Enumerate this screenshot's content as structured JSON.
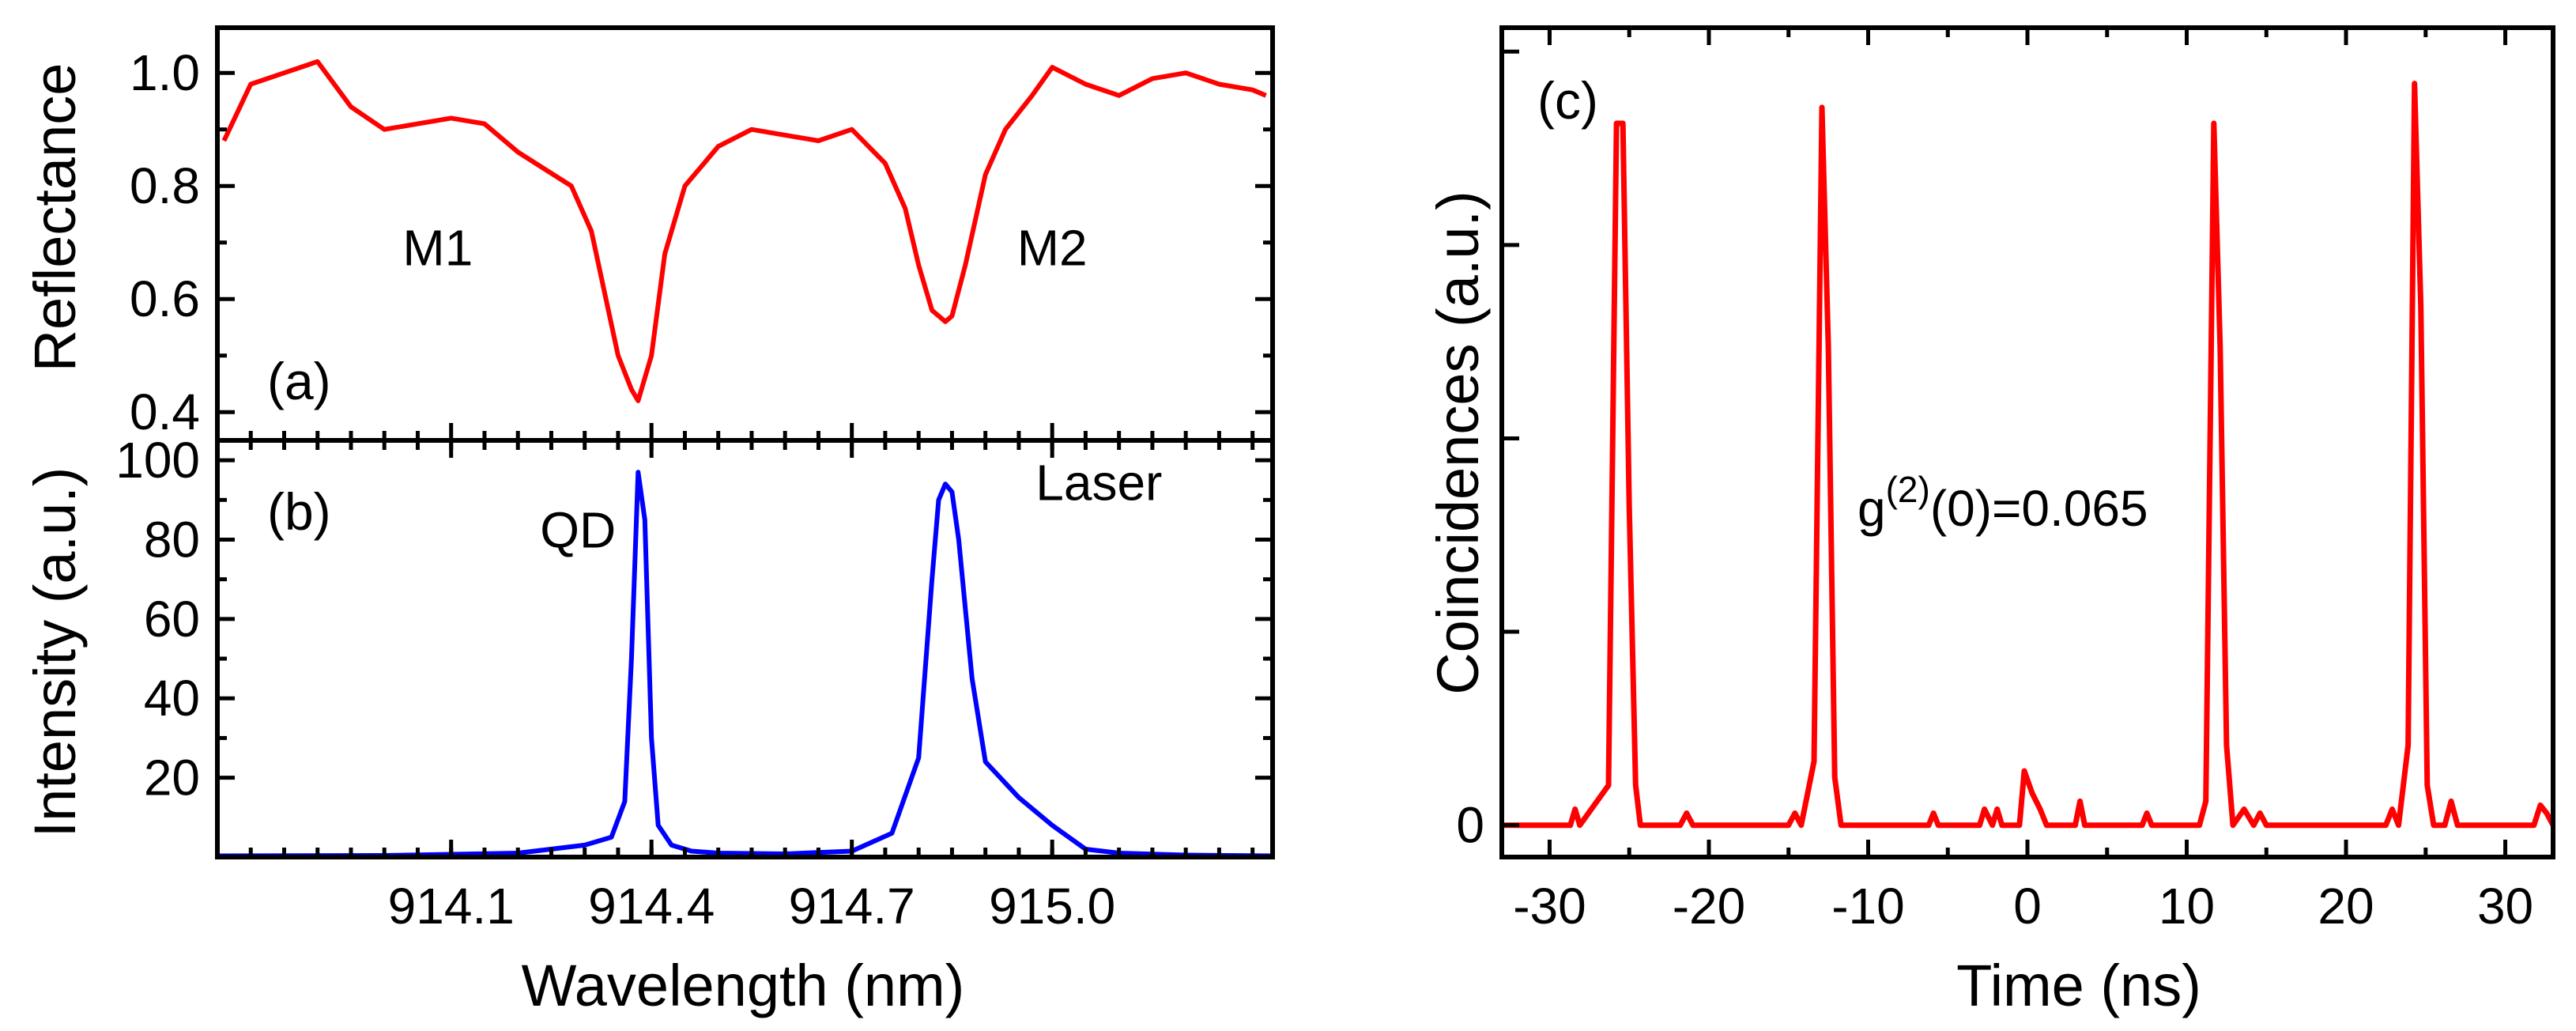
{
  "chart_data": [
    {
      "panel": "a",
      "type": "line",
      "panel_label": "(a)",
      "ylabel": "Reflectance",
      "xlabel": "",
      "xlim": [
        913.75,
        915.33
      ],
      "ylim": [
        0.35,
        1.08
      ],
      "yticks": [
        "0.4",
        "0.6",
        "0.8",
        "1.0"
      ],
      "ytick_values": [
        0.4,
        0.6,
        0.8,
        1.0
      ],
      "color": "#ff0000",
      "annotations": [
        {
          "text": "M1",
          "x": 914.08,
          "y": 0.66
        },
        {
          "text": "M2",
          "x": 915.0,
          "y": 0.66
        }
      ],
      "series": [
        {
          "name": "Reflectance",
          "x": [
            913.76,
            913.8,
            913.85,
            913.9,
            913.95,
            914.0,
            914.05,
            914.1,
            914.15,
            914.2,
            914.24,
            914.28,
            914.31,
            914.33,
            914.35,
            914.37,
            914.38,
            914.4,
            914.42,
            914.45,
            914.5,
            914.55,
            914.6,
            914.65,
            914.7,
            914.75,
            914.78,
            914.8,
            914.82,
            914.84,
            914.85,
            914.87,
            914.9,
            914.93,
            914.97,
            915.0,
            915.05,
            915.1,
            915.15,
            915.2,
            915.25,
            915.3,
            915.32
          ],
          "y": [
            0.88,
            0.98,
            1.0,
            1.02,
            0.94,
            0.9,
            0.91,
            0.92,
            0.91,
            0.86,
            0.83,
            0.8,
            0.72,
            0.61,
            0.5,
            0.44,
            0.42,
            0.5,
            0.68,
            0.8,
            0.87,
            0.9,
            0.89,
            0.88,
            0.9,
            0.84,
            0.76,
            0.66,
            0.58,
            0.56,
            0.57,
            0.66,
            0.82,
            0.9,
            0.96,
            1.01,
            0.98,
            0.96,
            0.99,
            1.0,
            0.98,
            0.97,
            0.96
          ]
        }
      ]
    },
    {
      "panel": "b",
      "type": "line",
      "panel_label": "(b)",
      "ylabel": "Intensity (a.u.)",
      "xlabel": "Wavelength (nm)",
      "xlim": [
        913.75,
        915.33
      ],
      "ylim": [
        0,
        105
      ],
      "xticks": [
        "914.1",
        "914.4",
        "914.7",
        "915.0"
      ],
      "xtick_values": [
        914.1,
        914.4,
        914.7,
        915.0
      ],
      "yticks": [
        "20",
        "40",
        "60",
        "80",
        "100"
      ],
      "ytick_values": [
        20,
        40,
        60,
        80,
        100
      ],
      "color": "#0000ff",
      "annotations": [
        {
          "text": "QD",
          "x": 914.29,
          "y": 78
        },
        {
          "text": "Laser",
          "x": 915.07,
          "y": 90
        }
      ],
      "series": [
        {
          "name": "Intensity",
          "x": [
            913.75,
            914.0,
            914.2,
            914.3,
            914.34,
            914.36,
            914.37,
            914.38,
            914.39,
            914.4,
            914.41,
            914.43,
            914.46,
            914.5,
            914.6,
            914.7,
            914.76,
            914.8,
            914.82,
            914.83,
            914.84,
            914.85,
            914.86,
            914.88,
            914.9,
            914.95,
            915.0,
            915.05,
            915.1,
            915.2,
            915.33
          ],
          "y": [
            0.3,
            0.4,
            1,
            3,
            5,
            14,
            50,
            97,
            85,
            30,
            8,
            3,
            1.5,
            1,
            0.8,
            1.5,
            6,
            25,
            70,
            90,
            94,
            92,
            80,
            45,
            24,
            15,
            8,
            2,
            1,
            0.5,
            0.3
          ]
        }
      ]
    },
    {
      "panel": "c",
      "type": "line",
      "panel_label": "(c)",
      "ylabel": "Coincidences (a.u.)",
      "xlabel": "Time (ns)",
      "xlim": [
        -33,
        33
      ],
      "ylim": [
        -0.04,
        1.0
      ],
      "xticks": [
        "-30",
        "-20",
        "-10",
        "0",
        "10",
        "20",
        "30"
      ],
      "xtick_values": [
        -30,
        -20,
        -10,
        0,
        10,
        20,
        30
      ],
      "yticks": [
        "0"
      ],
      "ytick_values": [
        0
      ],
      "color": "#ff0000",
      "annotation": {
        "text_main": "g",
        "superscript": "(2)",
        "rest": "(0)=0.065"
      },
      "series": [
        {
          "name": "Coincidences",
          "x": [
            -33,
            -28.7,
            -28.4,
            -28.1,
            -26.3,
            -25.8,
            -25.4,
            -25.0,
            -24.6,
            -24.3,
            -23.5,
            -21.8,
            -21.4,
            -21.0,
            -20.6,
            -15.0,
            -14.6,
            -14.2,
            -13.4,
            -12.9,
            -12.5,
            -12.1,
            -11.7,
            -6.2,
            -5.9,
            -5.6,
            -3.0,
            -2.7,
            -2.2,
            -1.9,
            -1.6,
            -0.5,
            -0.2,
            0.3,
            0.8,
            1.2,
            1.6,
            3.0,
            3.3,
            3.6,
            7.2,
            7.5,
            7.8,
            10.8,
            11.2,
            11.7,
            12.1,
            12.5,
            12.9,
            13.6,
            14.2,
            14.6,
            15.0,
            22.5,
            22.9,
            23.3,
            23.9,
            24.3,
            24.7,
            25.1,
            25.5,
            26.2,
            26.6,
            27.0,
            27.4,
            31.8,
            32.2,
            32.6,
            33
          ],
          "y": [
            0,
            0,
            0.02,
            0,
            0.05,
            0.88,
            0.88,
            0.4,
            0.05,
            0,
            0,
            0,
            0.015,
            0,
            0,
            0,
            0.015,
            0,
            0.08,
            0.9,
            0.6,
            0.06,
            0,
            0,
            0.015,
            0,
            0,
            0.02,
            0,
            0.02,
            0,
            0,
            0.068,
            0.04,
            0.02,
            0,
            0,
            0,
            0.03,
            0,
            0,
            0.015,
            0,
            0,
            0.03,
            0.88,
            0.6,
            0.1,
            0,
            0.02,
            0,
            0.015,
            0,
            0,
            0.02,
            0,
            0.1,
            0.93,
            0.65,
            0.05,
            0,
            0,
            0.03,
            0,
            0,
            0,
            0.025,
            0.015,
            0
          ]
        }
      ]
    }
  ]
}
